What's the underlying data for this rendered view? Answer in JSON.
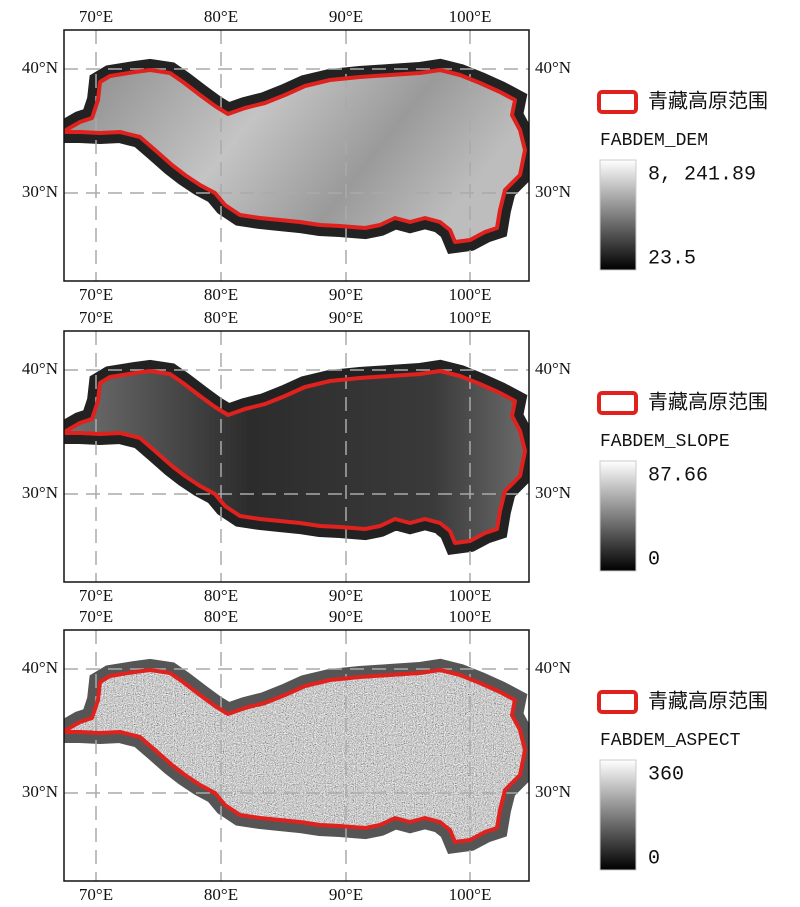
{
  "lon_ticks": [
    "70°E",
    "80°E",
    "90°E",
    "100°E"
  ],
  "lat_ticks": [
    "40°N",
    "30°N"
  ],
  "panels": [
    {
      "legend": "青藏高原范围",
      "layer": "FABDEM_DEM",
      "max_label": "8, 241.89",
      "min_label": "23.5"
    },
    {
      "legend": "青藏高原范围",
      "layer": "FABDEM_SLOPE",
      "max_label": "87.66",
      "min_label": "0"
    },
    {
      "legend": "青藏高原范围",
      "layer": "FABDEM_ASPECT",
      "max_label": "360",
      "min_label": "0"
    }
  ]
}
